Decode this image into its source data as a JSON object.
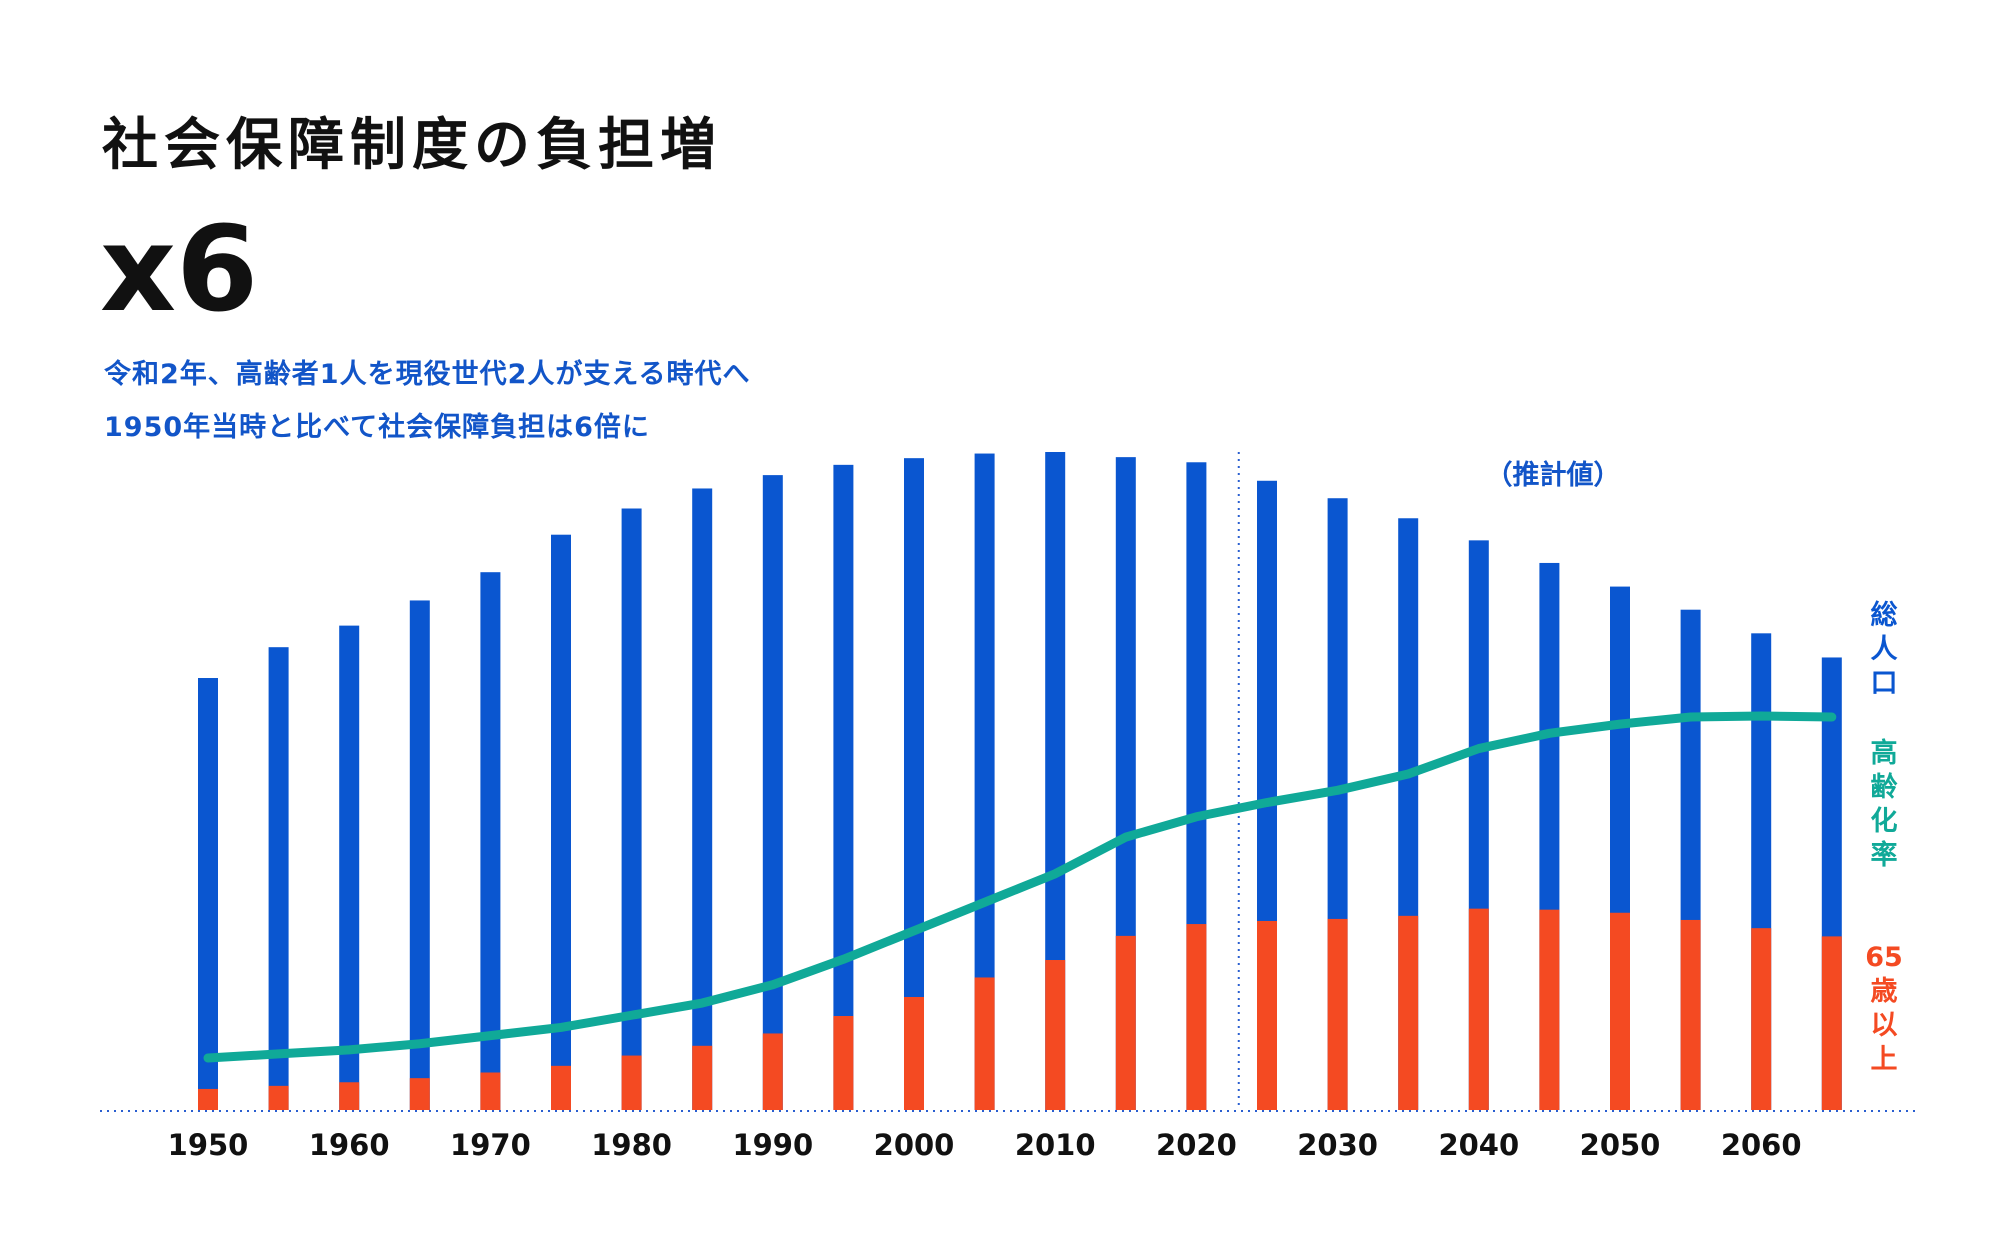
{
  "header": {
    "title": "社会保障制度の負担増",
    "multiplier": "x6",
    "subtitle_line1": "令和2年、高齢者1人を現役世代2人が支える時代へ",
    "subtitle_line2": "1950年当時と比べて社会保障負担は6倍に"
  },
  "chart_data": {
    "type": "bar",
    "projection_label": "（推計値）",
    "projection_start_year": 2023,
    "categories": [
      1950,
      1955,
      1960,
      1965,
      1970,
      1975,
      1980,
      1985,
      1990,
      1995,
      2000,
      2005,
      2010,
      2015,
      2020,
      2025,
      2030,
      2035,
      2040,
      2045,
      2050,
      2055,
      2060,
      2065
    ],
    "x_tick_labels": [
      "1950",
      "1960",
      "1970",
      "1980",
      "1990",
      "2000",
      "2010",
      "2020",
      "2030",
      "2040",
      "2050",
      "2060"
    ],
    "series": [
      {
        "name": "総人口",
        "color": "#0a56d0",
        "values": [
          84.1,
          90.1,
          94.3,
          99.2,
          104.7,
          112.0,
          117.1,
          121.0,
          123.6,
          125.6,
          126.9,
          127.8,
          128.1,
          127.1,
          126.1,
          122.5,
          119.1,
          115.2,
          110.9,
          106.5,
          101.9,
          97.4,
          92.8,
          88.1
        ]
      },
      {
        "name": "65歳以上",
        "color": "#f44a22",
        "values": [
          4.1,
          4.7,
          5.4,
          6.2,
          7.3,
          8.6,
          10.6,
          12.5,
          14.9,
          18.3,
          22.0,
          25.8,
          29.2,
          33.9,
          36.2,
          36.8,
          37.2,
          37.8,
          39.2,
          39.0,
          38.4,
          37.0,
          35.4,
          33.8
        ]
      },
      {
        "name": "高齢化率",
        "color": "#10a998",
        "type": "line",
        "values": [
          4.9,
          5.3,
          5.7,
          6.3,
          7.1,
          7.9,
          9.1,
          10.3,
          12.1,
          14.6,
          17.4,
          20.2,
          23.0,
          26.6,
          28.6,
          30.0,
          31.2,
          32.8,
          35.3,
          36.8,
          37.7,
          38.4,
          38.5,
          38.4
        ]
      }
    ],
    "ylim": [
      0,
      140
    ],
    "legend": [
      "総人口",
      "高齢化率",
      "65歳以上"
    ],
    "legend_position": "right"
  }
}
